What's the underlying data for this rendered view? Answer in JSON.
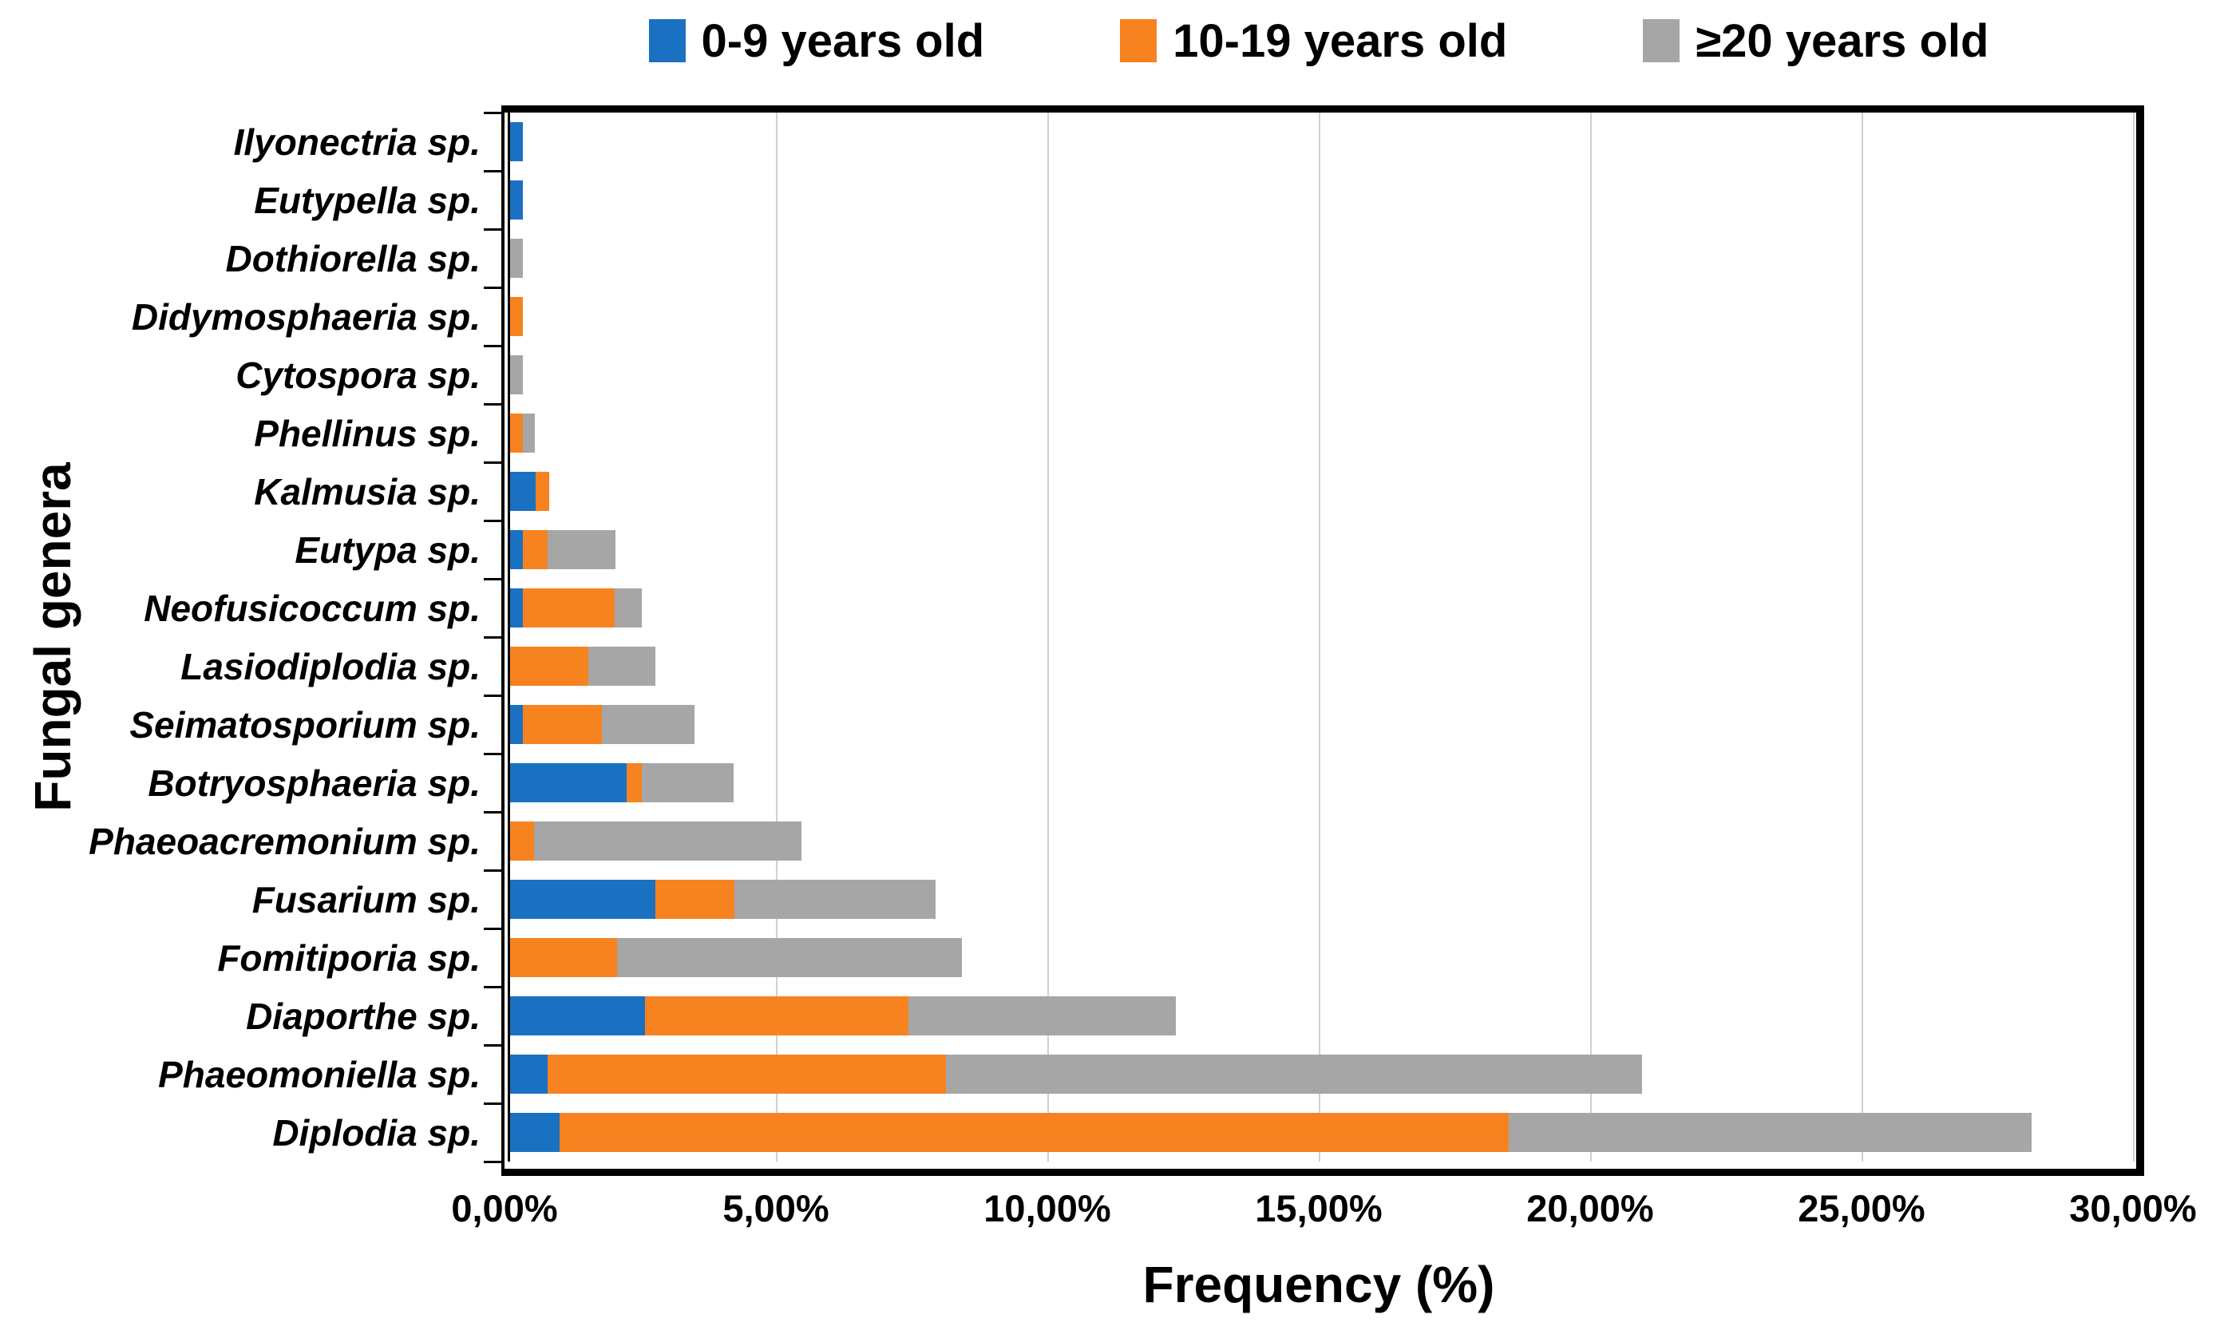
{
  "legend": {
    "items": [
      {
        "label": "0-9 years old",
        "color": "#1B71C1"
      },
      {
        "label": "10-19 years old",
        "color": "#F68220"
      },
      {
        "label": "≥20 years old",
        "color": "#A6A6A6"
      }
    ]
  },
  "axes": {
    "x_title": "Frequency (%)",
    "y_title": "Fungal genera"
  },
  "chart_data": {
    "type": "bar",
    "orientation": "horizontal",
    "stacked": true,
    "title": "",
    "xlabel": "Frequency (%)",
    "ylabel": "Fungal genera",
    "xlim": [
      0,
      30
    ],
    "x_tick_labels": [
      "0,00%",
      "5,00%",
      "10,00%",
      "15,00%",
      "20,00%",
      "25,00%",
      "30,00%"
    ],
    "grid": "vertical gridlines every 5%",
    "legend_position": "top",
    "categories": [
      "Ilyonectria sp.",
      "Eutypella sp.",
      "Dothiorella sp.",
      "Didymosphaeria sp.",
      "Cytospora sp.",
      "Phellinus sp.",
      "Kalmusia sp.",
      "Eutypa sp.",
      "Neofusicoccum sp.",
      "Lasiodiplodia sp.",
      "Seimatosporium sp.",
      "Botryosphaeria sp.",
      "Phaeoacremonium sp.",
      "Fusarium sp.",
      "Fomitiporia sp.",
      "Diaporthe sp.",
      "Phaeomoniella sp.",
      "Diplodia sp."
    ],
    "series": [
      {
        "name": "0-9 years old",
        "color": "#1B71C1",
        "values": [
          0.23,
          0.23,
          0,
          0,
          0,
          0,
          0.47,
          0.23,
          0.23,
          0,
          0.23,
          2.15,
          0,
          2.69,
          0,
          2.5,
          0.7,
          0.92
        ]
      },
      {
        "name": "10-19 years old",
        "color": "#F68220",
        "values": [
          0,
          0,
          0,
          0.23,
          0,
          0.23,
          0.25,
          0.47,
          1.7,
          1.44,
          1.46,
          0.28,
          0.44,
          1.46,
          1.97,
          4.86,
          7.36,
          17.54
        ]
      },
      {
        "name": "≥20 years old",
        "color": "#A6A6A6",
        "values": [
          0,
          0,
          0.23,
          0,
          0.23,
          0.23,
          0,
          1.25,
          0.5,
          1.24,
          1.72,
          1.7,
          4.94,
          3.71,
          6.38,
          4.94,
          12.86,
          9.66
        ]
      }
    ]
  }
}
